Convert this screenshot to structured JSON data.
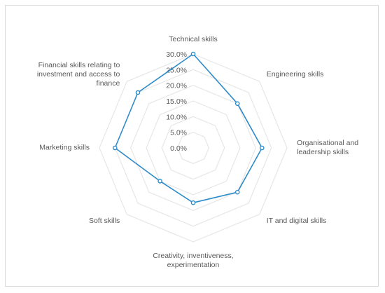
{
  "chart_data": {
    "type": "radar",
    "title": "",
    "categories": [
      "Technical skills",
      "Engineering skills",
      "Organisational and leadership skills",
      "IT and digital skills",
      "Creativity, inventiveness, experimentation",
      "Soft skills",
      "Marketing skills",
      "Financial skills relating to investment and access to finance"
    ],
    "category_lines": [
      [
        "Technical skills"
      ],
      [
        "Engineering skills"
      ],
      [
        "Organisational and",
        "leadership skills"
      ],
      [
        "IT and digital skills"
      ],
      [
        "Creativity, inventiveness,",
        "experimentation"
      ],
      [
        "Soft skills"
      ],
      [
        "Marketing skills"
      ],
      [
        "Financial skills relating to",
        "investment and access to",
        "finance"
      ]
    ],
    "series": [
      {
        "values": [
          30.0,
          20.0,
          22.0,
          20.0,
          17.5,
          15.0,
          25.0,
          25.0
        ]
      }
    ],
    "radial_ticks": [
      "0.0%",
      "5.0%",
      "10.0%",
      "15.0%",
      "20.0%",
      "25.0%",
      "30.0%"
    ],
    "rlim": [
      0,
      30
    ],
    "grid": true,
    "legend": "none",
    "colors": {
      "series": "#2e8bc9",
      "grid": "#e6e6e6",
      "text": "#595959"
    }
  }
}
